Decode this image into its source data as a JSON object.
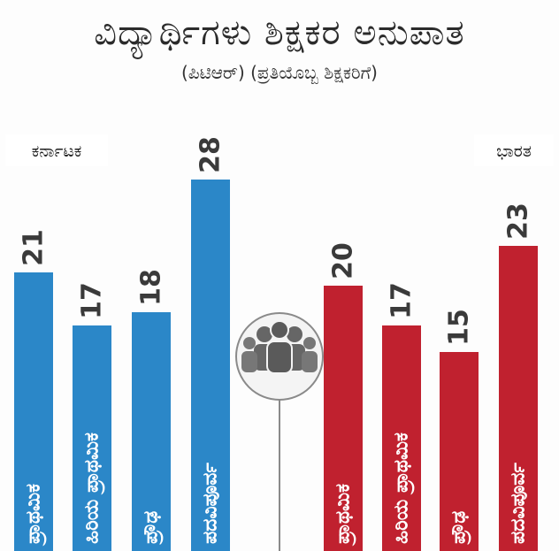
{
  "chart_data": [
    {
      "type": "bar",
      "title": "ವಿದ್ಯಾರ್ಥಿಗಳು ಶಿಕ್ಷಕರ ಅನುಪಾತ",
      "subtitle": "(ಪಿಟಿಆರ್) (ಪ್ರತಿಯೊಬ್ಬ ಶಿಕ್ಷಕರಿಗೆ)",
      "region": "ಕರ್ನಾಟಕ",
      "color": "#2b87c8",
      "categories": [
        "ಪ್ರಾಥಮಿಕ",
        "ಹಿರಿಯ ಪ್ರಾಥಮಿಕ",
        "ಪ್ರೌಢ",
        "ಪದವಿಪೂರ್ವ"
      ],
      "values": [
        21,
        17,
        18,
        28
      ],
      "ylim": [
        0,
        30
      ]
    },
    {
      "type": "bar",
      "region": "ಭಾರತ",
      "color": "#c0212f",
      "categories": [
        "ಪ್ರಾಥಮಿಕ",
        "ಹಿರಿಯ ಪ್ರಾಥಮಿಕ",
        "ಪ್ರೌಢ",
        "ಪದವಿಪೂರ್ವ"
      ],
      "values": [
        20,
        17,
        15,
        23
      ],
      "ylim": [
        0,
        30
      ]
    }
  ],
  "icon": "people-group-icon"
}
